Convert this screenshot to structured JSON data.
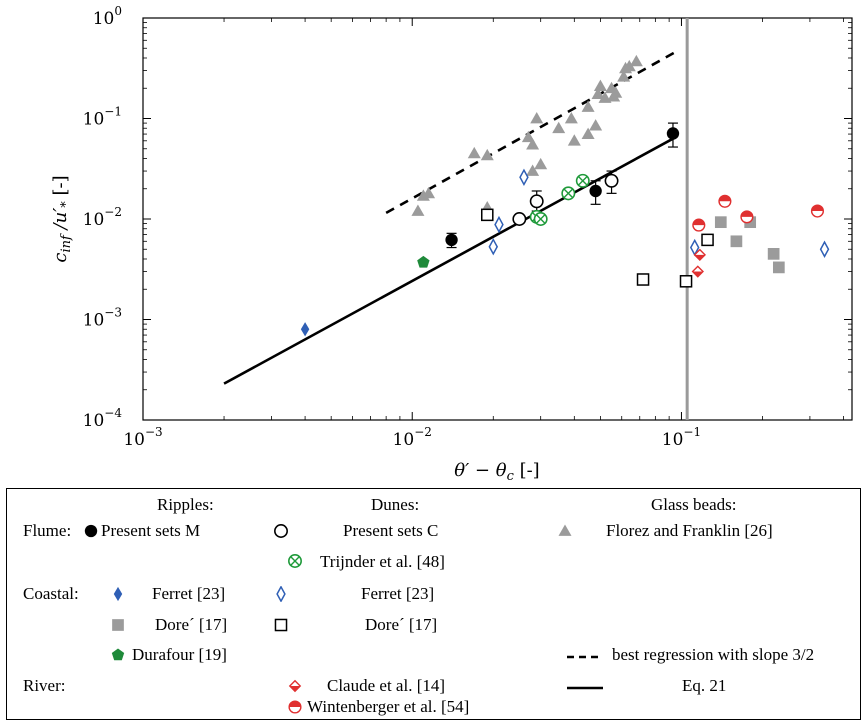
{
  "chart_data": {
    "type": "scatter",
    "x_scale": "log",
    "y_scale": "log",
    "xlim": [
      0.001,
      0.43
    ],
    "ylim": [
      0.0001,
      1
    ],
    "xticks": [
      {
        "value": 0.001,
        "base": "10",
        "exp": "−3"
      },
      {
        "value": 0.01,
        "base": "10",
        "exp": "−2"
      },
      {
        "value": 0.1,
        "base": "10",
        "exp": "−1"
      }
    ],
    "yticks": [
      {
        "value": 0.0001,
        "base": "10",
        "exp": "−4"
      },
      {
        "value": 0.001,
        "base": "10",
        "exp": "−3"
      },
      {
        "value": 0.01,
        "base": "10",
        "exp": "−2"
      },
      {
        "value": 0.1,
        "base": "10",
        "exp": "−1"
      },
      {
        "value": 1,
        "base": "10",
        "exp": "0"
      }
    ],
    "xlabel": "θ′ − θc [-]",
    "ylabel": "cinf /u′* [-]",
    "vertical_line_x": 0.105,
    "series": [
      {
        "key": "present_m",
        "marker": "filled-circle",
        "color": "#000000",
        "points": [
          [
            0.014,
            0.0062
          ],
          [
            0.048,
            0.019
          ],
          [
            0.093,
            0.071
          ]
        ],
        "errors": [
          [
            0.0052,
            0.0072
          ],
          [
            0.014,
            0.024
          ],
          [
            0.052,
            0.09
          ]
        ]
      },
      {
        "key": "present_c",
        "marker": "open-circle",
        "color": "#000000",
        "points": [
          [
            0.025,
            0.01
          ],
          [
            0.029,
            0.015
          ],
          [
            0.055,
            0.024
          ]
        ],
        "errors": [
          null,
          [
            0.012,
            0.019
          ],
          [
            0.018,
            0.03
          ]
        ]
      },
      {
        "key": "florez",
        "marker": "triangle",
        "color": "#9b9b9b",
        "points": [
          [
            0.0105,
            0.012
          ],
          [
            0.011,
            0.017
          ],
          [
            0.0115,
            0.018
          ],
          [
            0.017,
            0.045
          ],
          [
            0.019,
            0.043
          ],
          [
            0.019,
            0.013
          ],
          [
            0.028,
            0.03
          ],
          [
            0.027,
            0.065
          ],
          [
            0.028,
            0.055
          ],
          [
            0.029,
            0.1
          ],
          [
            0.03,
            0.035
          ],
          [
            0.035,
            0.08
          ],
          [
            0.039,
            0.1
          ],
          [
            0.04,
            0.06
          ],
          [
            0.045,
            0.07
          ],
          [
            0.045,
            0.13
          ],
          [
            0.049,
            0.175
          ],
          [
            0.05,
            0.21
          ],
          [
            0.052,
            0.16
          ],
          [
            0.055,
            0.2
          ],
          [
            0.056,
            0.165
          ],
          [
            0.057,
            0.18
          ],
          [
            0.061,
            0.26
          ],
          [
            0.062,
            0.315
          ],
          [
            0.064,
            0.33
          ],
          [
            0.068,
            0.37
          ],
          [
            0.048,
            0.085
          ]
        ]
      },
      {
        "key": "trijnder",
        "marker": "circle-x",
        "color": "#1f9a3a",
        "points": [
          [
            0.029,
            0.0105
          ],
          [
            0.03,
            0.01
          ],
          [
            0.038,
            0.018
          ],
          [
            0.043,
            0.024
          ]
        ]
      },
      {
        "key": "ferret_ripples",
        "marker": "filled-diamond",
        "color": "#2f5fb5",
        "points": [
          [
            0.004,
            0.0008
          ]
        ]
      },
      {
        "key": "ferret_dunes",
        "marker": "open-diamond",
        "color": "#2f5fb5",
        "points": [
          [
            0.02,
            0.0053
          ],
          [
            0.021,
            0.0088
          ],
          [
            0.026,
            0.026
          ],
          [
            0.112,
            0.0052
          ],
          [
            0.34,
            0.005
          ]
        ]
      },
      {
        "key": "dore_ripples",
        "marker": "filled-square",
        "color": "#9b9b9b",
        "points": [
          [
            0.14,
            0.0093
          ],
          [
            0.16,
            0.006
          ],
          [
            0.18,
            0.0093
          ],
          [
            0.22,
            0.0045
          ],
          [
            0.23,
            0.0033
          ]
        ]
      },
      {
        "key": "dore_dunes",
        "marker": "open-square",
        "color": "#000000",
        "points": [
          [
            0.019,
            0.011
          ],
          [
            0.072,
            0.0025
          ],
          [
            0.104,
            0.0024
          ],
          [
            0.125,
            0.0062
          ]
        ]
      },
      {
        "key": "durafour",
        "marker": "pentagon",
        "color": "#1f8a3a",
        "points": [
          [
            0.011,
            0.0037
          ]
        ]
      },
      {
        "key": "claude",
        "marker": "half-diamond",
        "color": "#e03030",
        "points": [
          [
            0.115,
            0.003
          ],
          [
            0.117,
            0.0044
          ]
        ]
      },
      {
        "key": "wintenberger",
        "marker": "half-circle",
        "color": "#e03030",
        "points": [
          [
            0.116,
            0.0087
          ],
          [
            0.145,
            0.015
          ],
          [
            0.175,
            0.0105
          ],
          [
            0.32,
            0.012
          ]
        ]
      }
    ],
    "lines": [
      {
        "key": "regression",
        "style": "dashed",
        "color": "#000000",
        "points": [
          [
            0.008,
            0.0115
          ],
          [
            0.098,
            0.48
          ]
        ]
      },
      {
        "key": "eq21",
        "style": "solid",
        "color": "#000000",
        "points": [
          [
            0.002,
            0.00023
          ],
          [
            0.095,
            0.065
          ]
        ]
      }
    ]
  },
  "legend": {
    "headers": {
      "ripples": "Ripples:",
      "dunes": "Dunes:",
      "glass": "Glass beads:"
    },
    "rows": {
      "flume": "Flume:",
      "coastal": "Coastal:",
      "river": "River:"
    },
    "items": {
      "present_m": "Present sets M",
      "present_c": "Present sets C",
      "florez": "Florez and Franklin [26]",
      "trijnder": "Trijnder et al. [48]",
      "ferret_ripples": "Ferret [23]",
      "ferret_dunes": "Ferret [23]",
      "dore_ripples": "Dore´ [17]",
      "dore_dunes": "Dore´ [17]",
      "durafour": "Durafour [19]",
      "claude": "Claude et al. [14]",
      "wintenberger": "Wintenberger et al. [54]",
      "regression": "best regression with slope 3/2",
      "eq21": "Eq. 21"
    }
  }
}
